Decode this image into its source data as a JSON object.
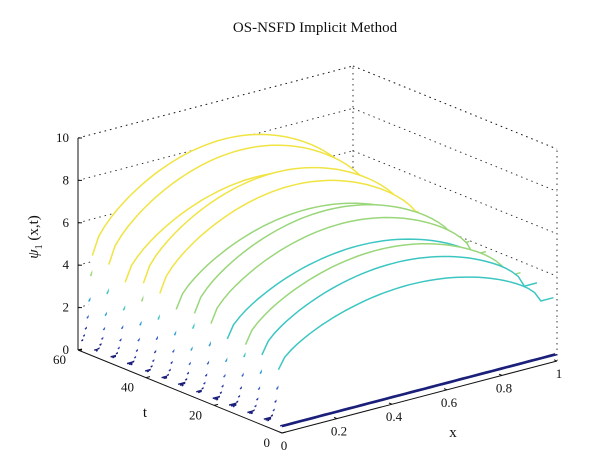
{
  "chart_data": {
    "type": "surface-3d",
    "title": "OS-NSFD Implicit Method",
    "xlabel": "x",
    "ylabel": "t",
    "zlabel_main": "ψ",
    "zlabel_sub": "1",
    "zlabel_args": " (x,t)",
    "xlim": [
      0,
      1
    ],
    "ylim": [
      0,
      60
    ],
    "zlim": [
      0,
      10
    ],
    "x_ticks": [
      "0",
      "0.2",
      "0.4",
      "0.6",
      "0.8",
      "1"
    ],
    "y_ticks": [
      "0",
      "20",
      "40",
      "60"
    ],
    "z_ticks": [
      "0",
      "2",
      "4",
      "6",
      "8",
      "10"
    ],
    "grid": true,
    "colormap": [
      "#1a1f7a",
      "#2b3ba8",
      "#3a63c8",
      "#2f9fd6",
      "#3cc6c2",
      "#9ad67a",
      "#f0e442"
    ],
    "pulse_times": [
      1,
      6,
      11,
      16,
      21,
      26,
      31,
      36,
      41,
      46,
      51,
      56
    ],
    "pulse_peaks": [
      5.6,
      6.0,
      6.3,
      6.6,
      6.9,
      7.2,
      7.5,
      7.7,
      8.0,
      8.2,
      8.4,
      8.6
    ],
    "baseline": 0.3
  }
}
